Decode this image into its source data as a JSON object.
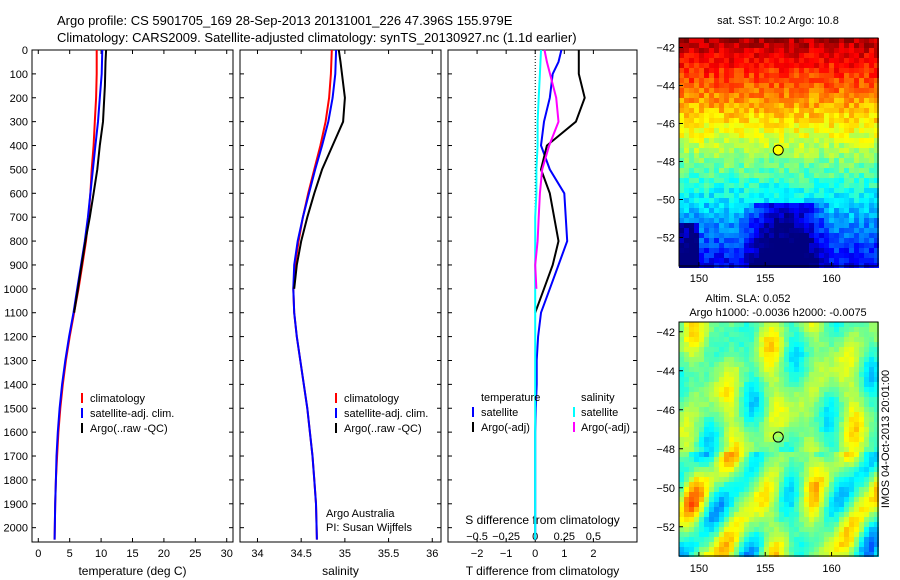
{
  "header": {
    "line1": "Argo profile: CS 5901705_169 28-Sep-2013 20131001_226 47.396S 155.979E",
    "line2": "Climatology: CARS2009. Satellite-adjusted climatology: synTS_20130927.nc (1.1d earlier)"
  },
  "colors": {
    "climatology": "#ff0000",
    "satellite": "#0000ff",
    "argo": "#000000",
    "salinity_satellite": "#00ffff",
    "salinity_argo": "#ff00ff"
  },
  "chart_data": [
    {
      "type": "line",
      "id": "temperature",
      "xlabel": "temperature (deg C)",
      "ylabel": "",
      "xlim": [
        -1,
        31
      ],
      "ylim": [
        2060,
        0
      ],
      "x_ticks": [
        0,
        5,
        10,
        15,
        20,
        25,
        30
      ],
      "y_ticks": [
        0,
        100,
        200,
        300,
        400,
        500,
        600,
        700,
        800,
        900,
        1000,
        1100,
        1200,
        1300,
        1400,
        1500,
        1600,
        1700,
        1800,
        1900,
        2000
      ],
      "legend": [
        "climatology",
        "satellite-adj. clim.",
        "Argo(..raw -QC)"
      ],
      "series": [
        {
          "name": "climatology",
          "color": "#ff0000",
          "x": [
            9.3,
            9.3,
            9.2,
            9.0,
            8.8,
            8.5,
            8.3,
            8.0,
            7.6,
            7.0,
            6.4,
            5.7,
            5.0,
            4.4,
            3.9,
            3.5,
            3.2,
            3.0,
            2.8,
            2.7,
            2.6
          ],
          "y": [
            0,
            100,
            200,
            300,
            400,
            500,
            600,
            700,
            800,
            900,
            1000,
            1100,
            1200,
            1300,
            1400,
            1500,
            1600,
            1700,
            1800,
            1900,
            2050
          ]
        },
        {
          "name": "satellite-adj. clim.",
          "color": "#0000ff",
          "x": [
            10.2,
            10.1,
            9.8,
            9.5,
            9.1,
            8.7,
            8.3,
            7.9,
            7.4,
            6.8,
            6.2,
            5.6,
            4.9,
            4.3,
            3.8,
            3.4,
            3.1,
            2.9,
            2.8,
            2.7,
            2.6
          ],
          "y": [
            0,
            100,
            200,
            300,
            400,
            500,
            600,
            700,
            800,
            900,
            1000,
            1100,
            1200,
            1300,
            1400,
            1500,
            1600,
            1700,
            1800,
            1900,
            2050
          ]
        },
        {
          "name": "Argo(..raw -QC)",
          "color": "#000000",
          "x": [
            10.8,
            10.7,
            10.6,
            10.3,
            9.8,
            9.4,
            8.8,
            8.2,
            7.5,
            6.9,
            6.3,
            5.7
          ],
          "y": [
            0,
            50,
            150,
            300,
            400,
            500,
            600,
            700,
            800,
            900,
            1000,
            1100
          ]
        }
      ]
    },
    {
      "type": "line",
      "id": "salinity",
      "xlabel": "salinity",
      "ylabel": "",
      "xlim": [
        33.8,
        36.1
      ],
      "ylim": [
        2060,
        0
      ],
      "x_ticks": [
        34,
        34.5,
        35,
        35.5,
        36
      ],
      "legend": [
        "climatology",
        "satellite-adj. clim.",
        "Argo(..raw -QC)"
      ],
      "annotation": [
        "Argo Australia",
        "PI: Susan Wijffels"
      ],
      "series": [
        {
          "name": "climatology",
          "color": "#ff0000",
          "x": [
            34.85,
            34.84,
            34.82,
            34.78,
            34.72,
            34.65,
            34.58,
            34.52,
            34.47,
            34.43,
            34.41,
            34.42,
            34.45,
            34.49,
            34.53,
            34.57,
            34.6,
            34.63,
            34.65,
            34.67,
            34.68
          ],
          "y": [
            0,
            100,
            200,
            300,
            400,
            500,
            600,
            700,
            800,
            900,
            1000,
            1100,
            1200,
            1300,
            1400,
            1500,
            1600,
            1700,
            1800,
            1900,
            2050
          ]
        },
        {
          "name": "satellite-adj. clim.",
          "color": "#0000ff",
          "x": [
            34.9,
            34.89,
            34.86,
            34.81,
            34.74,
            34.66,
            34.59,
            34.52,
            34.46,
            34.42,
            34.41,
            34.42,
            34.45,
            34.49,
            34.53,
            34.57,
            34.6,
            34.63,
            34.65,
            34.67,
            34.68
          ],
          "y": [
            0,
            100,
            200,
            300,
            400,
            500,
            600,
            700,
            800,
            900,
            1000,
            1100,
            1200,
            1300,
            1400,
            1500,
            1600,
            1700,
            1800,
            1900,
            2050
          ]
        },
        {
          "name": "Argo(..raw -QC)",
          "color": "#000000",
          "x": [
            34.93,
            34.95,
            35.0,
            34.98,
            34.86,
            34.74,
            34.65,
            34.57,
            34.5,
            34.45,
            34.42
          ],
          "y": [
            0,
            50,
            200,
            300,
            400,
            500,
            600,
            700,
            800,
            900,
            1000
          ]
        }
      ]
    },
    {
      "type": "line",
      "id": "difference",
      "xlabel": "T difference from climatology",
      "xlabel2": "S difference from climatology",
      "ylabel": "",
      "xlim": [
        -3,
        3.5
      ],
      "xlim2": [
        -0.75,
        0.875
      ],
      "ylim": [
        2060,
        0
      ],
      "x_ticks": [
        -2,
        -1,
        0,
        1,
        2
      ],
      "x_ticks2": [
        -0.5,
        -0.25,
        0,
        0.25,
        0.5
      ],
      "legend_temperature": {
        "title": "temperature",
        "entries": [
          "satellite",
          "Argo(-adj)"
        ]
      },
      "legend_salinity": {
        "title": "salinity",
        "entries": [
          "satellite",
          "Argo(-adj)"
        ]
      },
      "series": [
        {
          "name": "satellite",
          "group": "temperature",
          "color": "#0000ff",
          "x": [
            0.9,
            0.8,
            0.6,
            0.5,
            0.3,
            0.2,
            0.5,
            1.0,
            1.1,
            0.8,
            0.5,
            0.2,
            0.1,
            0.05,
            0.05,
            0.02,
            0.0,
            0.0,
            0.0,
            0.0
          ],
          "y": [
            0,
            50,
            100,
            200,
            300,
            400,
            500,
            600,
            800,
            900,
            1000,
            1100,
            1200,
            1300,
            1400,
            1500,
            1600,
            1700,
            1800,
            2050
          ]
        },
        {
          "name": "Argo(-adj)",
          "group": "temperature",
          "color": "#000000",
          "x": [
            1.5,
            1.5,
            1.7,
            1.4,
            0.4,
            0.2,
            0.5,
            0.8,
            0.6,
            0.3,
            0.0
          ],
          "y": [
            0,
            100,
            200,
            300,
            400,
            500,
            600,
            800,
            900,
            1000,
            1100
          ]
        },
        {
          "name": "satellite",
          "group": "salinity",
          "color": "#00ffff",
          "x": [
            0.05,
            0.04,
            0.03,
            0.02,
            0.02,
            0.01,
            0.01,
            0.0,
            0.0,
            0.0,
            0.0,
            0.0,
            0.0,
            0.0,
            0.0,
            0.0,
            0.0,
            0.0,
            0.0,
            0.0,
            0.0
          ],
          "y": [
            0,
            100,
            200,
            300,
            400,
            500,
            600,
            700,
            800,
            900,
            1000,
            1100,
            1200,
            1300,
            1400,
            1500,
            1600,
            1700,
            1800,
            1900,
            2050
          ]
        },
        {
          "name": "Argo(-adj)",
          "group": "salinity",
          "color": "#ff00ff",
          "x": [
            0.08,
            0.1,
            0.18,
            0.2,
            0.12,
            0.06,
            0.04,
            0.03,
            0.02,
            0.0,
            0.01
          ],
          "y": [
            0,
            50,
            200,
            300,
            400,
            500,
            600,
            700,
            800,
            900,
            1000
          ]
        }
      ]
    },
    {
      "type": "heatmap",
      "id": "sst_map",
      "title": "sat. SST: 10.2  Argo: 10.8",
      "xlim": [
        148.5,
        163.5
      ],
      "ylim": [
        -53.5,
        -41.5
      ],
      "x_ticks": [
        150,
        155,
        160
      ],
      "y_ticks": [
        -42,
        -44,
        -46,
        -48,
        -50,
        -52
      ],
      "marker": {
        "lon": 155.98,
        "lat": -47.4
      }
    },
    {
      "type": "heatmap",
      "id": "sla_map",
      "title": "Altim. SLA: 0.052",
      "subtitle": "Argo h1000: -0.0036 h2000: -0.0075",
      "xlim": [
        148.5,
        163.5
      ],
      "ylim": [
        -53.5,
        -41.5
      ],
      "x_ticks": [
        150,
        155,
        160
      ],
      "y_ticks": [
        -42,
        -44,
        -46,
        -48,
        -50,
        -52
      ],
      "marker": {
        "lon": 155.98,
        "lat": -47.4
      },
      "side_label": "IMOS 04-Oct-2013 20:01:00"
    }
  ]
}
